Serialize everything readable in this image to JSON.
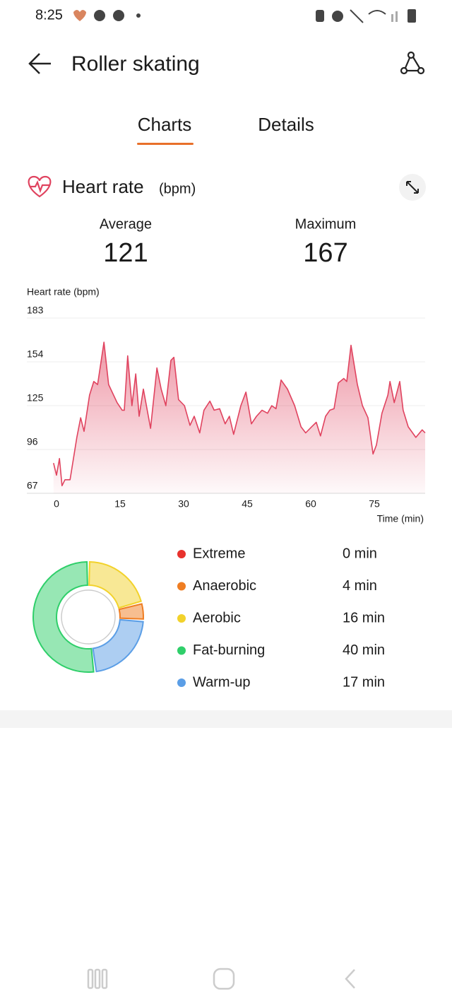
{
  "status_bar": {
    "time": "8:25"
  },
  "header": {
    "title": "Roller skating"
  },
  "tabs": [
    "Charts",
    "Details"
  ],
  "heart_rate": {
    "title": "Heart rate",
    "unit": "(bpm)",
    "stats": [
      {
        "label": "Average",
        "value": 121
      },
      {
        "label": "Maximum",
        "value": 167
      }
    ],
    "chart": {
      "type": "area",
      "y_label": "Heart rate (bpm)",
      "x_label": "Time (min)",
      "color": "#e0435f",
      "x": [
        -0.7,
        0,
        0.7,
        1.3,
        2,
        3.2,
        4.8,
        5.7,
        6.5,
        7.8,
        8.8,
        9.7,
        11.2,
        12.3,
        14.3,
        15.5,
        16,
        16.8,
        17.8,
        18.7,
        19.5,
        20.5,
        22.2,
        23.7,
        24.7,
        25.8,
        27,
        27.7,
        28.8,
        30.2,
        31.5,
        32.5,
        33.8,
        34.8,
        36.2,
        37.2,
        38.5,
        39.8,
        40.8,
        41.8,
        43.5,
        44.7,
        46,
        47.2,
        48.5,
        49.8,
        50.8,
        51.8,
        53,
        54.5,
        56.2,
        57.7,
        58.8,
        60.2,
        61.3,
        62.3,
        63.5,
        64.5,
        65.5,
        66.5,
        67.8,
        68.5,
        69.5,
        71,
        72.2,
        73.5,
        74.7,
        75.5,
        76.8,
        78.2,
        78.7,
        79.7,
        81,
        81.8,
        83,
        84.8,
        86.3,
        87
      ],
      "values": [
        87,
        79,
        90,
        72,
        76,
        76,
        104,
        117,
        108,
        132,
        141,
        139,
        167,
        139,
        127,
        122,
        122,
        158,
        125,
        146,
        118,
        136,
        110,
        150,
        136,
        125,
        155,
        157,
        129,
        125,
        112,
        118,
        107,
        122,
        128,
        122,
        123,
        113,
        118,
        106,
        125,
        134,
        113,
        118,
        122,
        120,
        125,
        123,
        142,
        136,
        125,
        111,
        107,
        111,
        114,
        105,
        118,
        122,
        123,
        140,
        143,
        141,
        165,
        139,
        125,
        117,
        93,
        99,
        120,
        132,
        141,
        127,
        141,
        122,
        111,
        104,
        109,
        107
      ],
      "xlim": [
        -7,
        87
      ],
      "ylim": [
        67,
        183
      ],
      "xticks": [
        0,
        15,
        30,
        45,
        60,
        75
      ],
      "yticks": [
        67,
        96,
        125,
        154,
        183
      ],
      "grid": true
    }
  },
  "zones": {
    "type": "pie",
    "categories": [
      "Extreme",
      "Anaerobic",
      "Aerobic",
      "Fat-burning",
      "Warm-up"
    ],
    "values": [
      0,
      4,
      16,
      40,
      17
    ],
    "value_labels": [
      "0 min",
      "4 min",
      "16 min",
      "40 min",
      "17 min"
    ],
    "colors": [
      "#e8322d",
      "#ef7d22",
      "#f2d22b",
      "#2fcf6a",
      "#5b9ee6"
    ]
  }
}
